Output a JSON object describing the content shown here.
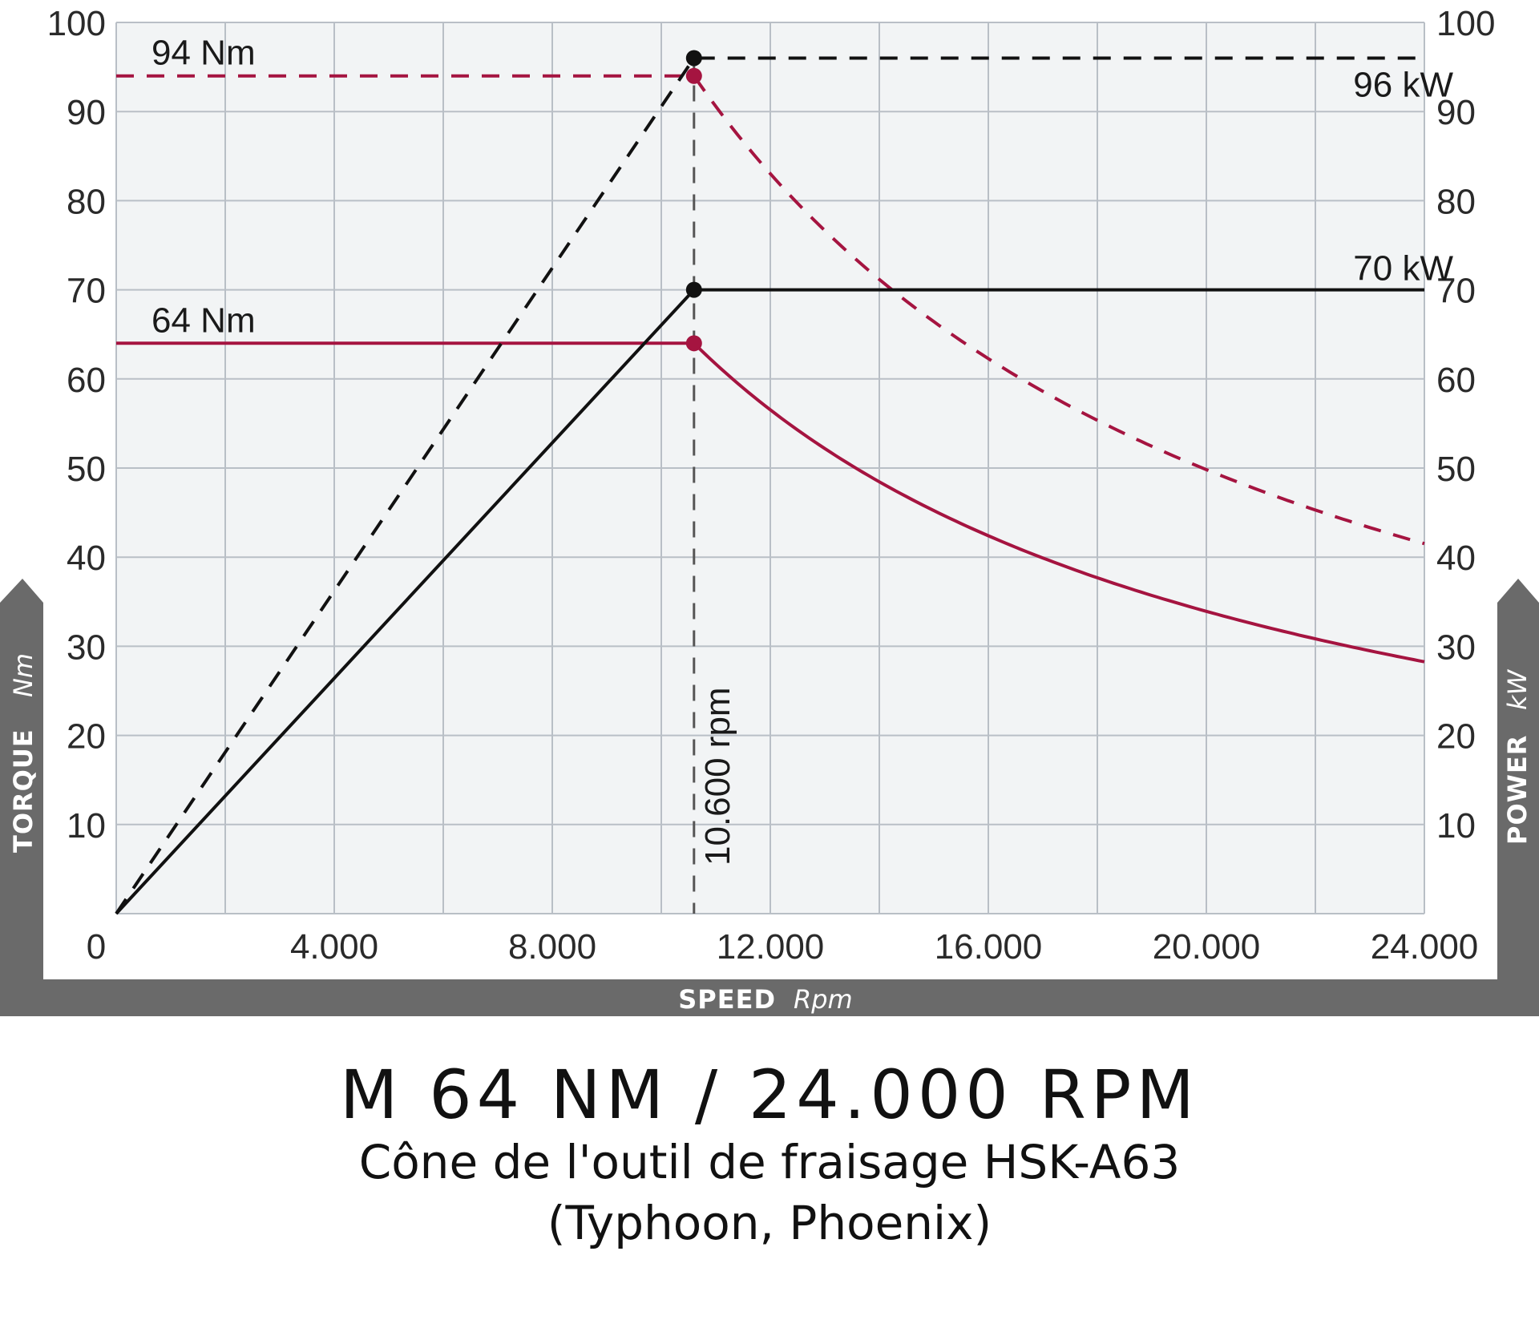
{
  "chart_data": {
    "type": "line",
    "title": "M 64 NM / 24.000 RPM",
    "subtitle_lines": [
      "Cône de l'outil de fraisage HSK-A63",
      "(Typhoon, Phoenix)"
    ],
    "xlabel": "SPEED",
    "xunit": "Rpm",
    "ylabel_left": "TORQUE",
    "yunit_left": "Nm",
    "ylabel_right": "POWER",
    "yunit_right": "kW",
    "xlim": [
      0,
      24000
    ],
    "ylim": [
      0,
      100
    ],
    "grid": true,
    "x_ticks": [
      {
        "value": 0,
        "label": "0"
      },
      {
        "value": 4000,
        "label": "4.000"
      },
      {
        "value": 8000,
        "label": "8.000"
      },
      {
        "value": 12000,
        "label": "12.000"
      },
      {
        "value": 16000,
        "label": "16.000"
      },
      {
        "value": 20000,
        "label": "20.000"
      },
      {
        "value": 24000,
        "label": "24.000"
      }
    ],
    "y_ticks": [
      {
        "value": 10,
        "label": "10"
      },
      {
        "value": 20,
        "label": "20"
      },
      {
        "value": 30,
        "label": "30"
      },
      {
        "value": 40,
        "label": "40"
      },
      {
        "value": 50,
        "label": "50"
      },
      {
        "value": 60,
        "label": "60"
      },
      {
        "value": 70,
        "label": "70"
      },
      {
        "value": 80,
        "label": "80"
      },
      {
        "value": 90,
        "label": "90"
      },
      {
        "value": 100,
        "label": "100"
      }
    ],
    "series": [
      {
        "color": "#a51440",
        "style": "solid",
        "axis": "left",
        "curve": "torque",
        "kind": "base"
      },
      {
        "color": "#a51440",
        "style": "dashed",
        "axis": "left",
        "curve": "torque",
        "kind": "peak"
      },
      {
        "color": "#111111",
        "style": "solid",
        "axis": "right",
        "curve": "power",
        "kind": "base"
      },
      {
        "color": "#111111",
        "style": "dashed",
        "axis": "right",
        "curve": "power",
        "kind": "peak"
      }
    ],
    "base_speed_rpm": 10600,
    "torque_continuous_nm": 64,
    "torque_peak_nm": 94,
    "power_continuous_kw": 70,
    "power_peak_kw": 96,
    "max_speed_rpm": 24000,
    "annotations": [
      {
        "text": "94 Nm",
        "x": 500,
        "y": 94
      },
      {
        "text": "64 Nm",
        "x": 500,
        "y": 64
      },
      {
        "text": "96 kW",
        "x": 21000,
        "y": 96
      },
      {
        "text": "70 kW",
        "x": 21000,
        "y": 70
      },
      {
        "text": "10.600 rpm",
        "x": 10600,
        "y": 0
      }
    ],
    "colors": {
      "torque": "#a51440",
      "power": "#111111",
      "grid": "#b9bfc6",
      "plot_bg": "#f2f4f5",
      "axis_band": "#6a6a6a"
    }
  }
}
